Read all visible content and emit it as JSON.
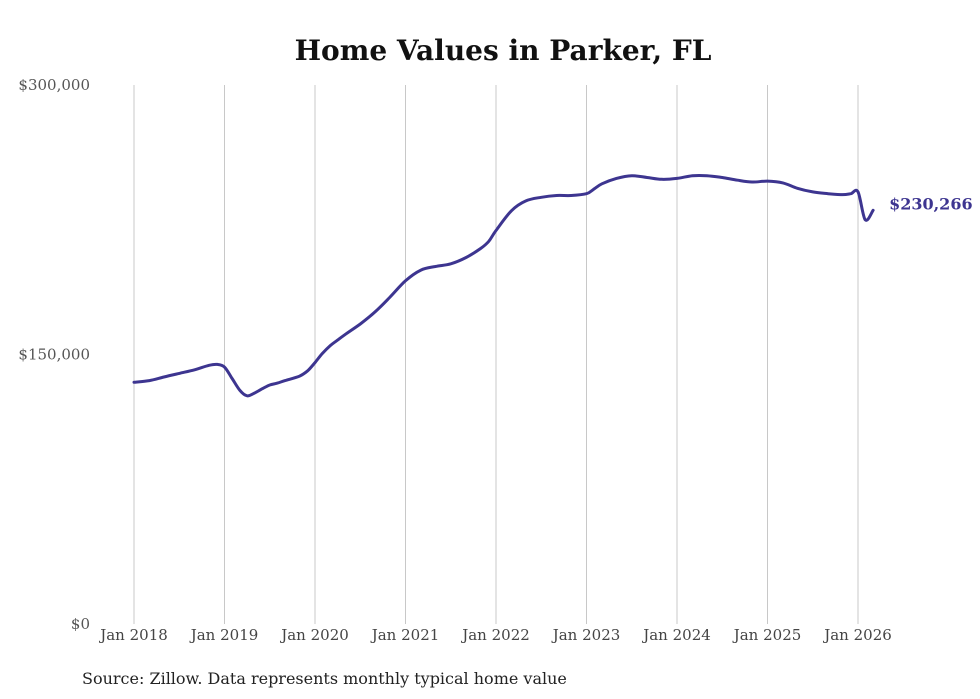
{
  "chart_data": {
    "type": "line",
    "title": "Home Values in Parker, FL",
    "xlabel": "",
    "ylabel": "",
    "ylim": [
      0,
      300000
    ],
    "y_ticks": [
      {
        "value": 0,
        "label": "$0"
      },
      {
        "value": 150000,
        "label": "$150,000"
      },
      {
        "value": 300000,
        "label": "$300,000"
      }
    ],
    "x_ticks": [
      {
        "value": 2018,
        "label": "Jan 2018"
      },
      {
        "value": 2019,
        "label": "Jan 2019"
      },
      {
        "value": 2020,
        "label": "Jan 2020"
      },
      {
        "value": 2021,
        "label": "Jan 2021"
      },
      {
        "value": 2022,
        "label": "Jan 2022"
      },
      {
        "value": 2023,
        "label": "Jan 2023"
      },
      {
        "value": 2024,
        "label": "Jan 2024"
      },
      {
        "value": 2025,
        "label": "Jan 2025"
      },
      {
        "value": 2026,
        "label": "Jan 2026"
      }
    ],
    "xlim": [
      2018,
      2026.1667
    ],
    "grid": "vertical",
    "series": [
      {
        "name": "Typical home value",
        "color": "#3d3590",
        "end_label": "$230,266",
        "x": [
          2018.0,
          2018.17,
          2018.33,
          2018.5,
          2018.67,
          2018.83,
          2018.92,
          2019.0,
          2019.08,
          2019.17,
          2019.25,
          2019.33,
          2019.42,
          2019.5,
          2019.58,
          2019.67,
          2019.83,
          2019.92,
          2020.0,
          2020.08,
          2020.17,
          2020.25,
          2020.33,
          2020.5,
          2020.67,
          2020.83,
          2021.0,
          2021.17,
          2021.33,
          2021.5,
          2021.67,
          2021.83,
          2021.92,
          2022.0,
          2022.17,
          2022.33,
          2022.5,
          2022.67,
          2022.83,
          2023.0,
          2023.08,
          2023.17,
          2023.33,
          2023.5,
          2023.67,
          2023.83,
          2024.0,
          2024.17,
          2024.33,
          2024.5,
          2024.67,
          2024.83,
          2025.0,
          2025.17,
          2025.33,
          2025.5,
          2025.67,
          2025.83,
          2025.92,
          2026.0,
          2026.08,
          2026.1667
        ],
        "values": [
          134500,
          135500,
          137500,
          139500,
          141500,
          144000,
          144500,
          143000,
          137000,
          130000,
          127000,
          128500,
          131000,
          133000,
          134000,
          135500,
          138000,
          141000,
          145500,
          150500,
          155000,
          158000,
          161000,
          167000,
          174000,
          182000,
          191000,
          197000,
          199000,
          200500,
          204000,
          209000,
          213000,
          219000,
          230000,
          235500,
          237500,
          238500,
          238500,
          239500,
          242000,
          245000,
          248000,
          249500,
          248500,
          247500,
          248000,
          249500,
          249500,
          248500,
          247000,
          246000,
          246500,
          245500,
          242500,
          240500,
          239500,
          239000,
          239500,
          240500,
          225000,
          230266
        ]
      }
    ]
  },
  "source_note": "Source: Zillow. Data represents monthly typical home value"
}
